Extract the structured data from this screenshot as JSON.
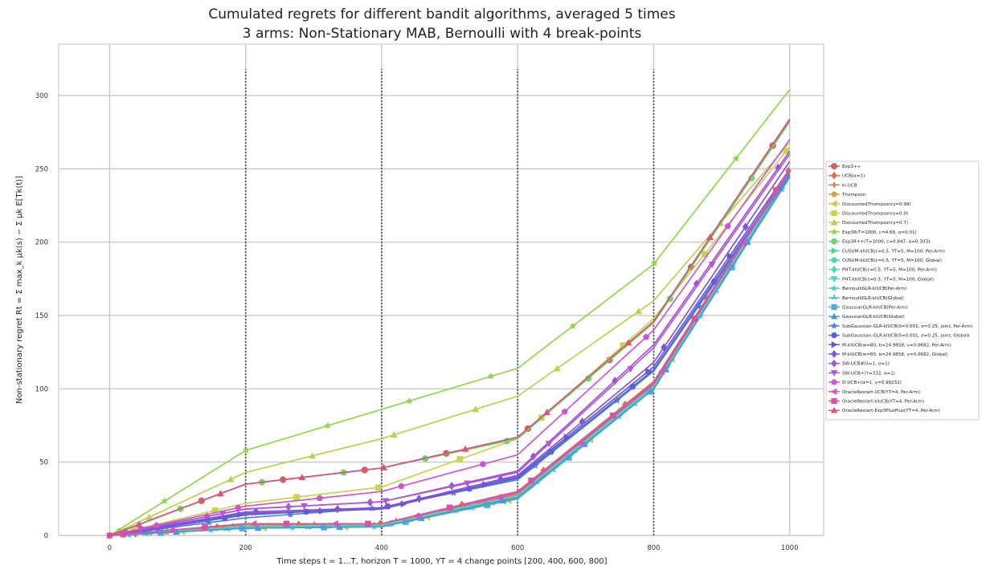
{
  "chart_data": {
    "type": "line",
    "title": "Cumulated regrets for different bandit algorithms, averaged 5 times",
    "subtitle": "3 arms: Non-Stationary MAB, Bernoulli with 4 break-points",
    "xlabel": "Time steps t = 1...T, horizon T = 1000, ΥT = 4 change points [200, 400, 600, 800]",
    "ylabel": "Non-stationary regret Rt = Σ max_k μk(s) − Σ μk E[Tk(t)]",
    "xlim": [
      -75,
      1050
    ],
    "ylim": [
      0,
      335
    ],
    "x_ticks": [
      0,
      200,
      400,
      600,
      800,
      1000
    ],
    "y_ticks": [
      0,
      50,
      100,
      150,
      200,
      250,
      300
    ],
    "change_points": [
      200,
      400,
      600,
      800
    ],
    "grid": true,
    "legend_position": "right",
    "series": [
      {
        "name": "Exp3++",
        "color": "#d65f5f",
        "marker": "circle",
        "x": [
          0,
          200,
          400,
          600,
          800,
          1000
        ],
        "y": [
          0,
          35,
          46,
          67,
          145,
          283
        ]
      },
      {
        "name": "UCB(α=1)",
        "color": "#d9734c",
        "marker": "diamond",
        "x": [
          0,
          200,
          400,
          600,
          800,
          1000
        ],
        "y": [
          0,
          7,
          8,
          30,
          105,
          250
        ]
      },
      {
        "name": "kl-UCB",
        "color": "#c8874c",
        "marker": "plus",
        "x": [
          0,
          200,
          400,
          600,
          800,
          1000
        ],
        "y": [
          0,
          7,
          8,
          28,
          103,
          248
        ]
      },
      {
        "name": "Thompson",
        "color": "#d6a050",
        "marker": "pentagon",
        "x": [
          0,
          200,
          400,
          600,
          800,
          1000
        ],
        "y": [
          0,
          6,
          7,
          26,
          102,
          250
        ]
      },
      {
        "name": "DiscountedThompson(γ=0.99)",
        "color": "#d8c255",
        "marker": "triangle-left",
        "x": [
          0,
          200,
          400,
          600,
          800,
          1000
        ],
        "y": [
          0,
          5,
          6,
          25,
          100,
          248
        ]
      },
      {
        "name": "DiscountedThompson(γ=0.9)",
        "color": "#c9d34f",
        "marker": "square",
        "x": [
          0,
          200,
          400,
          600,
          800,
          1000
        ],
        "y": [
          0,
          22,
          33,
          66,
          148,
          265
        ]
      },
      {
        "name": "DiscountedThompson(γ=0.7)",
        "color": "#b6d34f",
        "marker": "triangle-up",
        "x": [
          0,
          200,
          400,
          600,
          800,
          1000
        ],
        "y": [
          0,
          43,
          66,
          95,
          160,
          268
        ]
      },
      {
        "name": "Exp3R(T=1000, c=4.66, α=0.01)",
        "color": "#8fd64c",
        "marker": "star",
        "x": [
          0,
          200,
          400,
          600,
          800,
          1000
        ],
        "y": [
          0,
          58,
          86,
          114,
          185,
          304
        ]
      },
      {
        "name": "Exp3R++(T=1000, c=0.847, α=0.303)",
        "color": "#6ed66a",
        "marker": "octagon",
        "x": [
          0,
          200,
          400,
          600,
          800,
          1000
        ],
        "y": [
          0,
          35,
          46,
          66,
          145,
          282
        ]
      },
      {
        "name": "CUSUM-klUCB(ε=0.5, ΥT=5, M=100, Per-Arm)",
        "color": "#4fd688",
        "marker": "triangle-right",
        "x": [
          0,
          200,
          400,
          600,
          800,
          1000
        ],
        "y": [
          0,
          6,
          7,
          27,
          103,
          246
        ]
      },
      {
        "name": "CUSUM-klUCB(ε=0.5, ΥT=5, M=100, Global)",
        "color": "#50d6a8",
        "marker": "hexagon",
        "x": [
          0,
          200,
          400,
          600,
          800,
          1000
        ],
        "y": [
          0,
          6,
          7,
          27,
          102,
          247
        ]
      },
      {
        "name": "PHT-klUCB(ε=0.5, ΥT=5, M=100, Per-Arm)",
        "color": "#55d8b8",
        "marker": "diamond",
        "x": [
          0,
          200,
          400,
          600,
          800,
          1000
        ],
        "y": [
          0,
          6,
          6,
          26,
          101,
          246
        ]
      },
      {
        "name": "PHT-klUCB(ε=0.5, ΥT=5, M=100, Global)",
        "color": "#52d4c6",
        "marker": "triangle-down",
        "x": [
          0,
          200,
          400,
          600,
          800,
          1000
        ],
        "y": [
          0,
          5,
          6,
          25,
          100,
          245
        ]
      },
      {
        "name": "BernoulliGLR-klUCB(Per-Arm)",
        "color": "#50cfd6",
        "marker": "star",
        "x": [
          0,
          200,
          400,
          600,
          800,
          1000
        ],
        "y": [
          0,
          5,
          6,
          26,
          100,
          244
        ]
      },
      {
        "name": "BernoulliGLR-klUCB(Global)",
        "color": "#4dc0d6",
        "marker": "tri",
        "x": [
          0,
          200,
          400,
          600,
          800,
          1000
        ],
        "y": [
          0,
          5,
          6,
          25,
          100,
          245
        ]
      },
      {
        "name": "GaussianGLR-klUCB(Per-Arm)",
        "color": "#4aaed6",
        "marker": "square",
        "x": [
          0,
          200,
          400,
          600,
          800,
          1000
        ],
        "y": [
          0,
          5,
          6,
          25,
          100,
          244
        ]
      },
      {
        "name": "GaussianGLR-klUCB(Global)",
        "color": "#4c98d6",
        "marker": "triangle-up",
        "x": [
          0,
          200,
          400,
          600,
          800,
          1000
        ],
        "y": [
          0,
          5,
          6,
          26,
          100,
          245
        ]
      },
      {
        "name": "SubGaussian-GLR-klUCB(δ=0.001, σ=0.25, joint, Per-Arm)",
        "color": "#4f7fd8",
        "marker": "star",
        "x": [
          0,
          200,
          400,
          600,
          800,
          1000
        ],
        "y": [
          0,
          12,
          19,
          38,
          112,
          246
        ]
      },
      {
        "name": "SubGaussian-GLR-klUCB(δ=0.001, σ=0.25, joint, Global)",
        "color": "#5366d6",
        "marker": "hexagon",
        "x": [
          0,
          200,
          400,
          600,
          800,
          1000
        ],
        "y": [
          0,
          14,
          19,
          39,
          113,
          248
        ]
      },
      {
        "name": "M-klUCB(w=80, b=24.9858, γ=0.0682, Per-Arm)",
        "color": "#6a55d6",
        "marker": "triangle-right",
        "x": [
          0,
          200,
          400,
          600,
          800,
          1000
        ],
        "y": [
          0,
          15,
          18,
          40,
          115,
          250
        ]
      },
      {
        "name": "M-klUCB(w=80, b=24.9858, γ=0.0682, Global)",
        "color": "#8255d6",
        "marker": "diamond",
        "x": [
          0,
          200,
          400,
          600,
          800,
          1000
        ],
        "y": [
          0,
          16,
          19,
          41,
          118,
          255
        ]
      },
      {
        "name": "SW-UCB#(λ=1, α=1)",
        "color": "#9d55d6",
        "marker": "diamond",
        "x": [
          0,
          200,
          400,
          600,
          800,
          1000
        ],
        "y": [
          0,
          18,
          23,
          44,
          130,
          262
        ]
      },
      {
        "name": "SW-UCB+(τ=332, α=1)",
        "color": "#b455d6",
        "marker": "triangle-down",
        "x": [
          0,
          200,
          400,
          600,
          800,
          1000
        ],
        "y": [
          0,
          18,
          23,
          43,
          128,
          260
        ]
      },
      {
        "name": "D-UCB+(α=1, γ=0.99232)",
        "color": "#cc55d6",
        "marker": "pentagon",
        "x": [
          0,
          200,
          400,
          600,
          800,
          1000
        ],
        "y": [
          0,
          20,
          30,
          55,
          140,
          270
        ]
      },
      {
        "name": "OracleRestart-UCB(ΥT=4, Per-Arm)",
        "color": "#d655c0",
        "marker": "triangle-left",
        "x": [
          0,
          200,
          400,
          600,
          800,
          1000
        ],
        "y": [
          0,
          8,
          8,
          29,
          103,
          249
        ]
      },
      {
        "name": "OracleRestart-klUCB(ΥT=4, Per-Arm)",
        "color": "#d655a0",
        "marker": "square",
        "x": [
          0,
          200,
          400,
          600,
          800,
          1000
        ],
        "y": [
          0,
          8,
          8,
          30,
          104,
          250
        ]
      },
      {
        "name": "OracleRestart-Exp3PlusPlus(ΥT=4, Per-Arm)",
        "color": "#d65580",
        "marker": "triangle-up",
        "x": [
          0,
          200,
          400,
          600,
          800,
          1000
        ],
        "y": [
          0,
          35,
          46,
          67,
          146,
          284
        ]
      }
    ]
  }
}
